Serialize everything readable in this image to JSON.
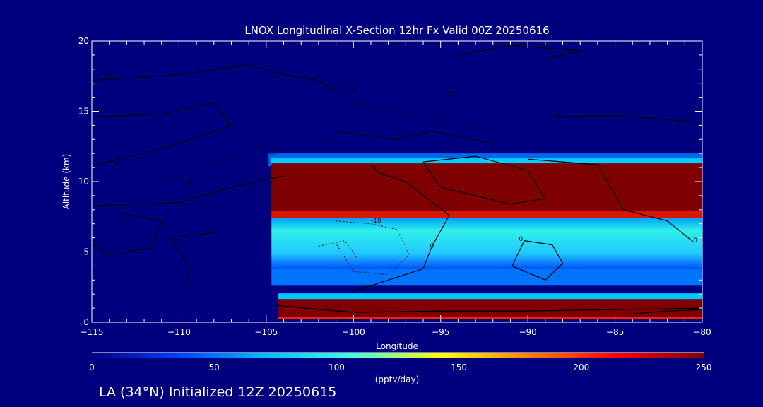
{
  "footer": "LA (34°N) Initialized 12Z 20250615",
  "chart_data": {
    "type": "heatmap",
    "title": "LNOX Longitudinal X-Section 12hr  Fx Valid 00Z 20250616",
    "xlabel": "Longitude",
    "ylabel": "Altitude (km)",
    "xlim": [
      -115,
      -80
    ],
    "ylim": [
      0,
      20
    ],
    "x_ticks": [
      "-115",
      "-110",
      "-105",
      "-100",
      "-95",
      "-90",
      "-85",
      "-80"
    ],
    "y_ticks": [
      "0",
      "5",
      "10",
      "15",
      "20"
    ],
    "colorbar": {
      "range": [
        0,
        250
      ],
      "unit": "(pptv/day)",
      "ticks": [
        "0",
        "50",
        "100",
        "150",
        "200",
        "250"
      ],
      "colors": [
        "#00007f",
        "#0040ff",
        "#00c0ff",
        "#40ffe0",
        "#ffff00",
        "#ff8000",
        "#ff0000",
        "#7f0000"
      ]
    },
    "layers": [
      {
        "x_start": -104.7,
        "x_end": -80,
        "y_low": 7.4,
        "y_high": 11.3,
        "value": 250
      },
      {
        "x_start": -104.7,
        "x_end": -80,
        "y_low": 3.8,
        "y_high": 7.4,
        "value": 95
      },
      {
        "x_start": -104.7,
        "x_end": -80,
        "y_low": 2.6,
        "y_high": 3.8,
        "value": 50
      },
      {
        "x_start": -104.3,
        "x_end": -80,
        "y_low": 0.4,
        "y_high": 1.7,
        "value": 250
      }
    ],
    "contour_labels": [
      {
        "x": -114.2,
        "y": 17.6,
        "text": "0"
      },
      {
        "x": -102.9,
        "y": 17.5,
        "text": "0"
      },
      {
        "x": -93.9,
        "y": 19.0,
        "text": "0"
      },
      {
        "x": -113.6,
        "y": 11.2,
        "text": "0"
      },
      {
        "x": -101.5,
        "y": 12.8,
        "text": "0"
      },
      {
        "x": -88.2,
        "y": 14.6,
        "text": "0"
      },
      {
        "x": -95.5,
        "y": 5.4,
        "text": "0"
      },
      {
        "x": -90.4,
        "y": 5.9,
        "text": "0"
      },
      {
        "x": -80.4,
        "y": 5.8,
        "text": "0"
      },
      {
        "x": -110.6,
        "y": 2.3,
        "text": "0"
      },
      {
        "x": -100.2,
        "y": 16.5,
        "text": "-10"
      },
      {
        "x": -94.5,
        "y": 16.2,
        "text": "-10"
      },
      {
        "x": -104.7,
        "y": 12.0,
        "text": "-10"
      },
      {
        "x": -109.5,
        "y": 10.0,
        "text": "-10"
      },
      {
        "x": -98.7,
        "y": 7.2,
        "text": "-10"
      }
    ]
  }
}
